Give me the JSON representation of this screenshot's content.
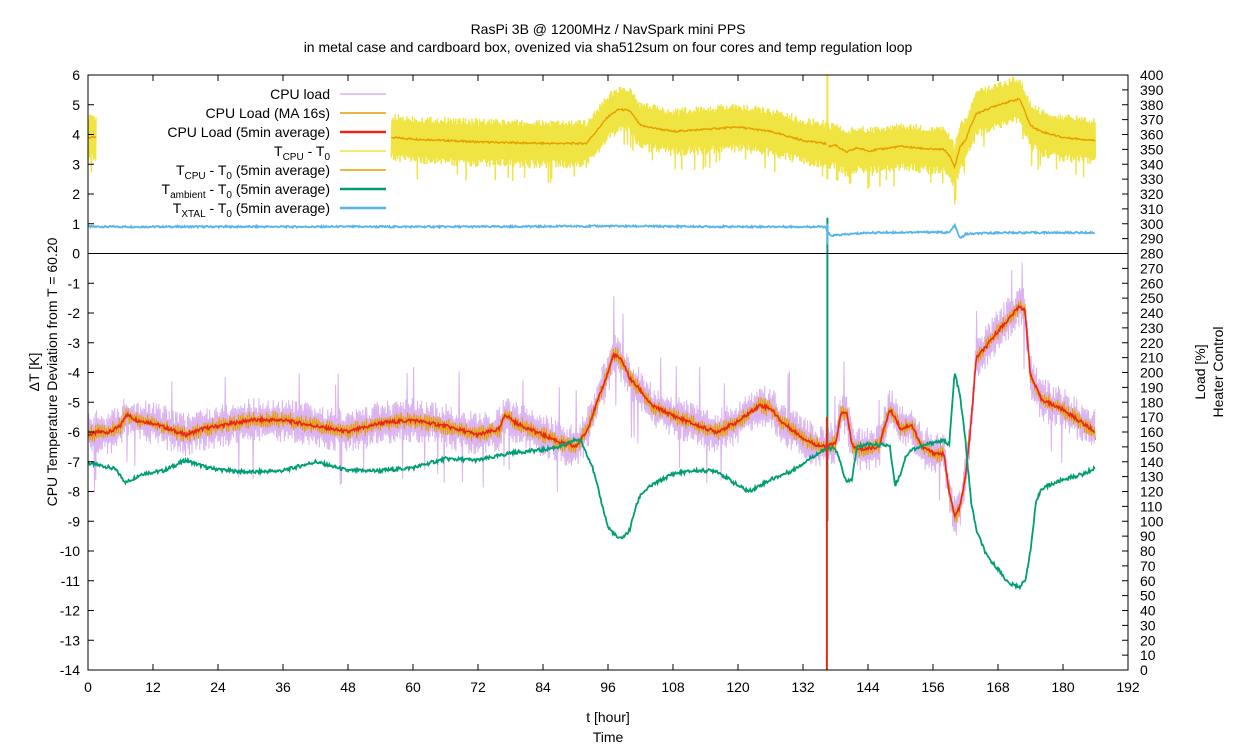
{
  "chart_data": {
    "type": "line",
    "title": "RasPi 3B @ 1200MHz / NavSpark mini PPS",
    "subtitle": "in metal case and cardboard box, ovenized via sha512sum on four cores and temp regulation loop",
    "xlabel": "t [hour]",
    "xlabel2": "Time",
    "ylabel": "CPU Temperature Deviation from T = 60.20",
    "ylabel_unit": "ΔT [K]",
    "y2label": "Load [%]",
    "y2label2": "Heater Control",
    "xlim": [
      0,
      192
    ],
    "ylim": [
      -14,
      6
    ],
    "y2lim": [
      0,
      400
    ],
    "xticks": [
      0,
      12,
      24,
      36,
      48,
      60,
      72,
      84,
      96,
      108,
      120,
      132,
      144,
      156,
      168,
      180,
      192
    ],
    "yticks": [
      -14,
      -13,
      -12,
      -11,
      -10,
      -9,
      -8,
      -7,
      -6,
      -5,
      -4,
      -3,
      -2,
      -1,
      0,
      1,
      2,
      3,
      4,
      5,
      6
    ],
    "y2ticks": [
      0,
      10,
      20,
      30,
      40,
      50,
      60,
      70,
      80,
      90,
      100,
      110,
      120,
      130,
      140,
      150,
      160,
      170,
      180,
      190,
      200,
      210,
      220,
      230,
      240,
      250,
      260,
      270,
      280,
      290,
      300,
      310,
      320,
      330,
      340,
      350,
      360,
      370,
      380,
      390,
      400
    ],
    "grid": false,
    "legend_position": "top-left",
    "legend": [
      {
        "name": "CPU load",
        "base": "CPU load",
        "color": "#dab3f0"
      },
      {
        "name": "CPU Load (MA 16s)",
        "base": "CPU Load (MA 16s)",
        "color": "#e69f00"
      },
      {
        "name": "CPU Load (5min average)",
        "base": "CPU Load (5min average)",
        "color": "#e8271a"
      },
      {
        "name": "TCPU - T0",
        "base": "T",
        "sub1": "CPU",
        "mid": " - T",
        "sub2": "0",
        "rest": "",
        "color": "#f0e442"
      },
      {
        "name": "TCPU - T0 (5min average)",
        "base": "T",
        "sub1": "CPU",
        "mid": " - T",
        "sub2": "0",
        "rest": " (5min average)",
        "color": "#e69f00"
      },
      {
        "name": "Tambient - T0 (5min average)",
        "base": "T",
        "sub1": "ambient",
        "mid": " - T",
        "sub2": "0",
        "rest": " (5min average)",
        "color": "#009e73"
      },
      {
        "name": "TXTAL - T0 (5min average)",
        "base": "T",
        "sub1": "XTAL",
        "mid": " - T",
        "sub2": "0",
        "rest": " (5min average)",
        "color": "#56b4e9"
      }
    ],
    "series": [
      {
        "name": "CPU Load (5min average)",
        "axis": "y2",
        "x": [
          0,
          2,
          4,
          6,
          7,
          9,
          12,
          15,
          18,
          21,
          24,
          30,
          36,
          42,
          48,
          54,
          60,
          66,
          72,
          76,
          77,
          79,
          84,
          88,
          90,
          92,
          94,
          96,
          97,
          98,
          99,
          100,
          102,
          104,
          108,
          112,
          116,
          120,
          124,
          126,
          128,
          132,
          134,
          136,
          138,
          139,
          140,
          141,
          142,
          146,
          148,
          149,
          150,
          152,
          154,
          156,
          158,
          159,
          160,
          161,
          162,
          163,
          164,
          166,
          168,
          170,
          172,
          173,
          174,
          175,
          176,
          180,
          184,
          186
        ],
        "values": [
          158,
          160,
          160,
          164,
          172,
          168,
          166,
          162,
          158,
          162,
          164,
          168,
          168,
          164,
          160,
          166,
          168,
          164,
          158,
          162,
          172,
          166,
          158,
          152,
          150,
          160,
          180,
          200,
          212,
          210,
          205,
          196,
          188,
          178,
          171,
          165,
          160,
          167,
          178,
          176,
          167,
          156,
          152,
          150,
          152,
          172,
          174,
          152,
          148,
          150,
          175,
          170,
          162,
          165,
          150,
          146,
          145,
          120,
          103,
          110,
          130,
          165,
          210,
          218,
          228,
          236,
          245,
          241,
          198,
          190,
          182,
          175,
          165,
          160
        ]
      },
      {
        "name": "Tambient - T0 (5min average)",
        "axis": "y1",
        "x": [
          0,
          3,
          5,
          7,
          10,
          14,
          18,
          22,
          26,
          30,
          36,
          42,
          48,
          54,
          60,
          66,
          72,
          76,
          78,
          84,
          88,
          90,
          91,
          93,
          95,
          96,
          98,
          99,
          100,
          101,
          102,
          104,
          108,
          112,
          116,
          120,
          122,
          126,
          130,
          134,
          136,
          138,
          139,
          140,
          141,
          142,
          144,
          148,
          149,
          150,
          151,
          152,
          156,
          158,
          159,
          160,
          161,
          162,
          163,
          164,
          166,
          168,
          170,
          172,
          173,
          174,
          175,
          176,
          180,
          184,
          186
        ],
        "values": [
          -7.05,
          -7.15,
          -7.25,
          -7.7,
          -7.4,
          -7.3,
          -6.95,
          -7.2,
          -7.3,
          -7.35,
          -7.3,
          -7.0,
          -7.3,
          -7.3,
          -7.2,
          -6.9,
          -6.95,
          -6.8,
          -6.7,
          -6.6,
          -6.45,
          -6.25,
          -6.3,
          -7.1,
          -8.5,
          -9.2,
          -9.6,
          -9.5,
          -9.3,
          -8.6,
          -8.1,
          -7.8,
          -7.4,
          -7.3,
          -7.3,
          -7.8,
          -8.0,
          -7.6,
          -7.3,
          -6.8,
          -6.6,
          -6.55,
          -7.1,
          -7.7,
          -7.6,
          -6.5,
          -6.4,
          -6.45,
          -7.8,
          -7.4,
          -6.8,
          -6.6,
          -6.35,
          -6.3,
          -6.4,
          -4.0,
          -4.8,
          -6.3,
          -8.3,
          -9.3,
          -10.2,
          -10.6,
          -11.1,
          -11.2,
          -11.0,
          -10.0,
          -8.4,
          -7.9,
          -7.6,
          -7.4,
          -7.2
        ]
      },
      {
        "name": "TXTAL - T0 (5min average)",
        "axis": "y1",
        "x": [
          0,
          24,
          48,
          72,
          96,
          120,
          132,
          136,
          137,
          144,
          156,
          159,
          160,
          161,
          162,
          168,
          180,
          186
        ],
        "values": [
          0.9,
          0.9,
          0.9,
          0.9,
          0.92,
          0.9,
          0.9,
          0.9,
          0.6,
          0.7,
          0.72,
          0.7,
          0.95,
          0.5,
          0.65,
          0.7,
          0.7,
          0.7
        ]
      },
      {
        "name": "TCPU - T0 (5min average)",
        "axis": "y1",
        "x": [
          0,
          1,
          2,
          56,
          60,
          72,
          84,
          92,
          96,
          98,
          100,
          102,
          108,
          120,
          126,
          132,
          136,
          137,
          138,
          140,
          142,
          144,
          150,
          156,
          158,
          159,
          160,
          161,
          162,
          163,
          164,
          166,
          168,
          172,
          174,
          176,
          180,
          186
        ],
        "values": [
          3.9,
          3.9,
          3.9,
          3.9,
          3.85,
          3.75,
          3.7,
          3.7,
          4.6,
          4.85,
          4.8,
          4.3,
          4.1,
          4.25,
          4.1,
          3.8,
          3.7,
          3.6,
          3.65,
          3.4,
          3.55,
          3.45,
          3.6,
          3.5,
          3.5,
          3.3,
          2.9,
          3.6,
          3.8,
          4.3,
          4.7,
          4.85,
          5.0,
          5.2,
          4.3,
          4.1,
          3.9,
          3.8
        ]
      }
    ],
    "annotations": [
      "horizontal reference line at ΔT = 0",
      "vertical spike near t ≈ 136.5 h"
    ]
  }
}
